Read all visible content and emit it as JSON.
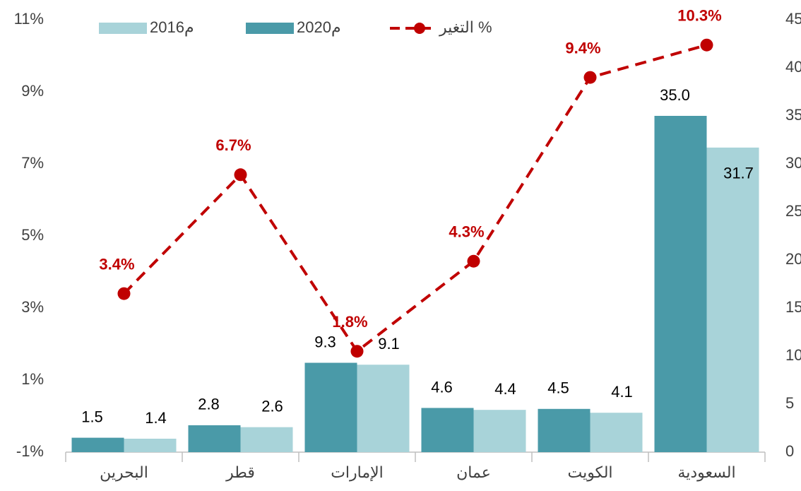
{
  "chart_data": {
    "type": "bar_line",
    "categories": [
      "البحرين",
      "قطر",
      "الإمارات",
      "عمان",
      "الكويت",
      "السعودية"
    ],
    "series": [
      {
        "name": "2020م",
        "color": "#4a9aa8",
        "values": [
          1.5,
          2.8,
          9.3,
          4.6,
          4.5,
          35.0
        ],
        "value_labels": [
          "1.5",
          "2.8",
          "9.3",
          "4.6",
          "4.5",
          "35.0"
        ],
        "axis": "y2"
      },
      {
        "name": "2016م",
        "color": "#a8d3d9",
        "values": [
          1.4,
          2.6,
          9.1,
          4.4,
          4.1,
          31.7
        ],
        "value_labels": [
          "1.4",
          "2.6",
          "9.1",
          "4.4",
          "4.1",
          "31.7"
        ],
        "axis": "y2"
      },
      {
        "name": "التغير %",
        "color": "#c00000",
        "type": "line",
        "values": [
          3.4,
          6.7,
          1.8,
          4.3,
          9.4,
          10.3
        ],
        "value_labels": [
          "3.4%",
          "6.7%",
          "1.8%",
          "4.3%",
          "9.4%",
          "10.3%"
        ]
      }
    ],
    "ylim": [
      -1,
      11
    ],
    "yticks": [
      {
        "value": -1,
        "label": "-1%"
      },
      {
        "value": 1,
        "label": "1%"
      },
      {
        "value": 3,
        "label": "3%"
      },
      {
        "value": 5,
        "label": "5%"
      },
      {
        "value": 7,
        "label": "7%"
      },
      {
        "value": 9,
        "label": "9%"
      },
      {
        "value": 11,
        "label": "11%"
      }
    ],
    "y2lim": [
      0,
      45
    ],
    "y2ticks": [
      0,
      5,
      10,
      15,
      20,
      25,
      30,
      35,
      40,
      45
    ],
    "grid": false
  }
}
